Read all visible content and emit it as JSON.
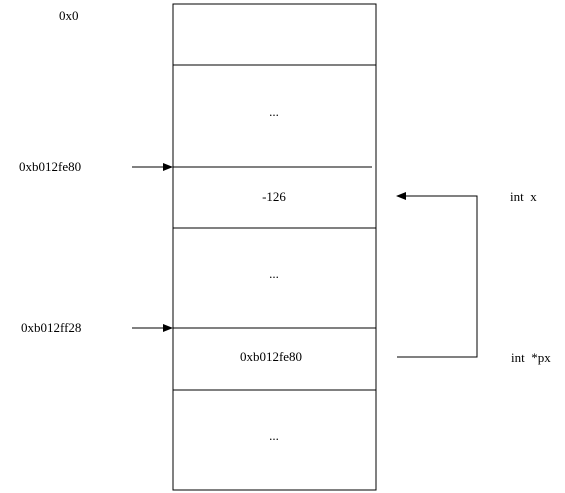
{
  "memory": {
    "base_address": "0x0",
    "cells": [
      {
        "content": ""
      },
      {
        "content": "..."
      },
      {
        "content": "-126"
      },
      {
        "content": "..."
      },
      {
        "content": "0xb012fe80"
      },
      {
        "content": "..."
      }
    ],
    "address_markers": [
      {
        "address": "0xb012fe80"
      },
      {
        "address": "0xb012ff28"
      }
    ]
  },
  "variables": [
    {
      "declaration": "int  x"
    },
    {
      "declaration": "int  *px"
    }
  ]
}
